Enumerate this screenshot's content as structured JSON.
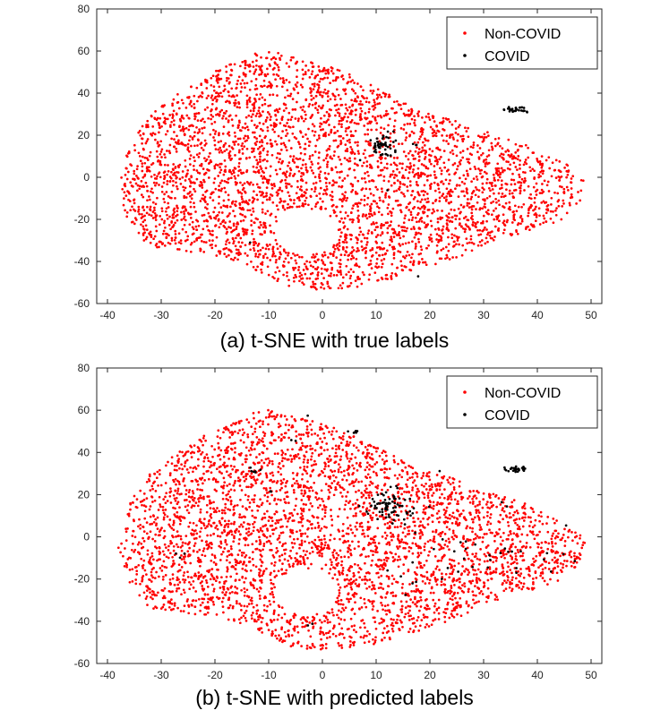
{
  "colors": {
    "non_covid": "#ff0000",
    "covid": "#000000",
    "axis": "#262626"
  },
  "chart_data": [
    {
      "type": "scatter",
      "caption": "(a) t-SNE with true labels",
      "title": "",
      "xlabel": "",
      "ylabel": "",
      "xlim": [
        -42,
        52
      ],
      "ylim": [
        -60,
        80
      ],
      "xticks": [
        -40,
        -30,
        -20,
        -10,
        0,
        10,
        20,
        30,
        40,
        50
      ],
      "yticks": [
        -60,
        -40,
        -20,
        0,
        20,
        40,
        60,
        80
      ],
      "grid": false,
      "legend_position": "top-right",
      "series": [
        {
          "name": "Non-COVID",
          "color": "#ff0000",
          "marker": "dot",
          "n_points": 3800,
          "region": {
            "description": "dense cloud roughly spanning x -39 to 49, y -54 to 62, with a notch free of points near (-2, -25)",
            "outline": [
              [
                -38,
                -5
              ],
              [
                -36,
                15
              ],
              [
                -33,
                28
              ],
              [
                -28,
                38
              ],
              [
                -22,
                48
              ],
              [
                -16,
                55
              ],
              [
                -12,
                61
              ],
              [
                -8,
                59
              ],
              [
                -4,
                56
              ],
              [
                0,
                54
              ],
              [
                6,
                48
              ],
              [
                12,
                40
              ],
              [
                18,
                32
              ],
              [
                24,
                28
              ],
              [
                30,
                22
              ],
              [
                36,
                18
              ],
              [
                42,
                10
              ],
              [
                46,
                6
              ],
              [
                49,
                -2
              ],
              [
                48,
                -12
              ],
              [
                44,
                -22
              ],
              [
                38,
                -26
              ],
              [
                30,
                -32
              ],
              [
                24,
                -40
              ],
              [
                16,
                -46
              ],
              [
                8,
                -52
              ],
              [
                0,
                -54
              ],
              [
                -6,
                -52
              ],
              [
                -10,
                -48
              ],
              [
                -14,
                -42
              ],
              [
                -20,
                -38
              ],
              [
                -26,
                -36
              ],
              [
                -32,
                -34
              ],
              [
                -36,
                -22
              ]
            ],
            "hole": {
              "x": -3,
              "y": -26,
              "rx": 6,
              "ry": 11
            }
          }
        },
        {
          "name": "COVID",
          "color": "#000000",
          "marker": "dot",
          "clusters": [
            {
              "x": 36,
              "y": 32,
              "sx": 1.4,
              "sy": 0.8,
              "n": 28
            },
            {
              "x": 11.5,
              "y": 15,
              "sx": 1.3,
              "sy": 3.0,
              "n": 50
            },
            {
              "x": 17,
              "y": 15,
              "sx": 0.6,
              "sy": 0.6,
              "n": 3
            },
            {
              "x": 7,
              "y": 8,
              "sx": 0.3,
              "sy": 0.3,
              "n": 1
            },
            {
              "x": 12,
              "y": -6,
              "sx": 0.3,
              "sy": 0.3,
              "n": 1
            },
            {
              "x": -13,
              "y": -31,
              "sx": 0.3,
              "sy": 0.3,
              "n": 1
            },
            {
              "x": 18,
              "y": -47,
              "sx": 0.3,
              "sy": 0.3,
              "n": 1
            }
          ]
        }
      ]
    },
    {
      "type": "scatter",
      "caption": "(b) t-SNE with predicted labels",
      "title": "",
      "xlabel": "",
      "ylabel": "",
      "xlim": [
        -42,
        52
      ],
      "ylim": [
        -60,
        80
      ],
      "xticks": [
        -40,
        -30,
        -20,
        -10,
        0,
        10,
        20,
        30,
        40,
        50
      ],
      "yticks": [
        -60,
        -40,
        -20,
        0,
        20,
        40,
        60,
        80
      ],
      "grid": false,
      "legend_position": "top-right",
      "series": [
        {
          "name": "Non-COVID",
          "color": "#ff0000",
          "marker": "dot",
          "n_points": 3800,
          "region": {
            "description": "same cloud as panel (a)",
            "outline": [
              [
                -38,
                -5
              ],
              [
                -36,
                15
              ],
              [
                -33,
                28
              ],
              [
                -28,
                38
              ],
              [
                -22,
                48
              ],
              [
                -16,
                55
              ],
              [
                -12,
                61
              ],
              [
                -8,
                59
              ],
              [
                -4,
                56
              ],
              [
                0,
                54
              ],
              [
                6,
                48
              ],
              [
                12,
                40
              ],
              [
                18,
                32
              ],
              [
                24,
                28
              ],
              [
                30,
                22
              ],
              [
                36,
                18
              ],
              [
                42,
                10
              ],
              [
                46,
                6
              ],
              [
                49,
                -2
              ],
              [
                48,
                -12
              ],
              [
                44,
                -22
              ],
              [
                38,
                -26
              ],
              [
                30,
                -32
              ],
              [
                24,
                -40
              ],
              [
                16,
                -46
              ],
              [
                8,
                -52
              ],
              [
                0,
                -54
              ],
              [
                -6,
                -52
              ],
              [
                -10,
                -48
              ],
              [
                -14,
                -42
              ],
              [
                -20,
                -38
              ],
              [
                -26,
                -36
              ],
              [
                -32,
                -34
              ],
              [
                -36,
                -22
              ]
            ],
            "hole": {
              "x": -3,
              "y": -26,
              "rx": 6,
              "ry": 11
            }
          }
        },
        {
          "name": "COVID",
          "color": "#000000",
          "marker": "dot",
          "clusters": [
            {
              "x": 36,
              "y": 32,
              "sx": 1.4,
              "sy": 0.8,
              "n": 28
            },
            {
              "x": 12,
              "y": 15,
              "sx": 1.8,
              "sy": 3.5,
              "n": 60
            },
            {
              "x": 16,
              "y": 12,
              "sx": 2.0,
              "sy": 2.0,
              "n": 14
            },
            {
              "x": 6,
              "y": 49,
              "sx": 1.0,
              "sy": 1.0,
              "n": 6
            },
            {
              "x": -13,
              "y": 31,
              "sx": 1.0,
              "sy": 0.8,
              "n": 6
            },
            {
              "x": -6,
              "y": 46,
              "sx": 0.6,
              "sy": 0.6,
              "n": 2
            },
            {
              "x": -10,
              "y": 22,
              "sx": 0.6,
              "sy": 0.6,
              "n": 2
            },
            {
              "x": 25,
              "y": -8,
              "sx": 5.0,
              "sy": 6.0,
              "n": 16
            },
            {
              "x": 36,
              "y": -8,
              "sx": 4.0,
              "sy": 4.0,
              "n": 8
            },
            {
              "x": 44,
              "y": -8,
              "sx": 2.0,
              "sy": 6.0,
              "n": 6
            },
            {
              "x": 15,
              "y": -22,
              "sx": 3.0,
              "sy": 3.0,
              "n": 5
            },
            {
              "x": -24,
              "y": -12,
              "sx": 3.0,
              "sy": 3.0,
              "n": 3
            },
            {
              "x": -2,
              "y": -42,
              "sx": 2.0,
              "sy": 2.0,
              "n": 2
            },
            {
              "x": 34,
              "y": 15,
              "sx": 1.0,
              "sy": 1.0,
              "n": 2
            },
            {
              "x": 21,
              "y": 31,
              "sx": 0.6,
              "sy": 0.6,
              "n": 1
            },
            {
              "x": -3,
              "y": 58,
              "sx": 0.6,
              "sy": 0.6,
              "n": 1
            }
          ]
        }
      ]
    }
  ]
}
